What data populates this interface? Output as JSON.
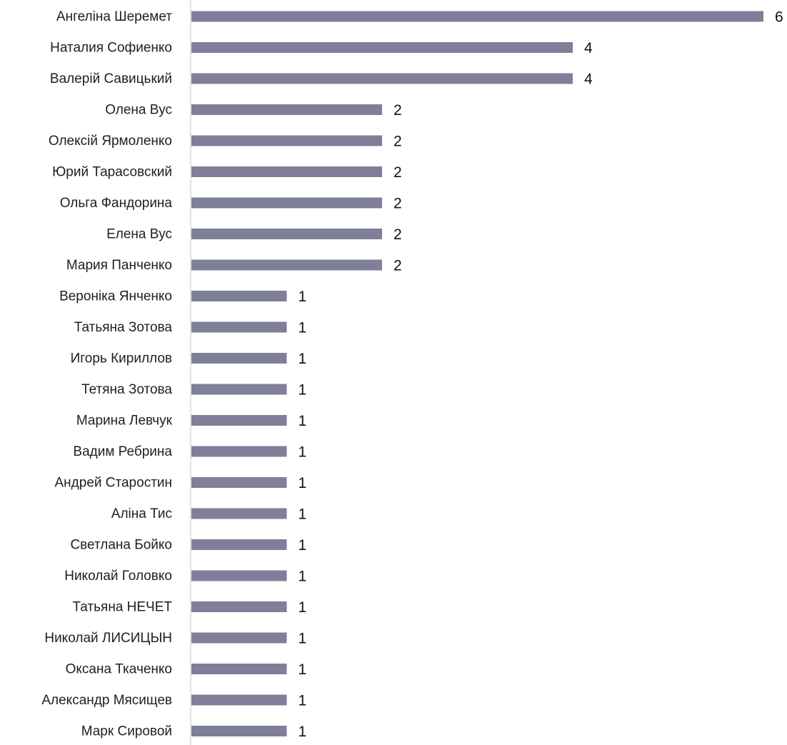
{
  "chart_data": {
    "type": "bar",
    "orientation": "horizontal",
    "title": "",
    "xlabel": "",
    "ylabel": "",
    "xlim": [
      0,
      6
    ],
    "grid": false,
    "legend": "none",
    "data_labels": true,
    "bar_color": "#7f7f99",
    "axis_color": "#d9d9d9",
    "categories": [
      "Ангеліна Шеремет",
      "Наталия Софиенко",
      "Валерій Савицький",
      "Олена Вус",
      "Олексій Ярмоленко",
      "Юрий Тарасовский",
      "Ольга Фандорина",
      "Елена Вус",
      "Мария Панченко",
      "Вероніка Янченко",
      "Татьяна Зотова",
      "Игорь Кириллов",
      "Тетяна Зотова",
      "Марина Левчук",
      "Вадим Ребрина",
      "Андрей Старостин",
      "Аліна Тис",
      "Светлана Бойко",
      "Николай Головко",
      "Татьяна НЕЧЕТ",
      "Николай ЛИСИЦЫН",
      "Оксана Ткаченко",
      "Александр Мясищев",
      "Марк Сировой"
    ],
    "values": [
      6,
      4,
      4,
      2,
      2,
      2,
      2,
      2,
      2,
      1,
      1,
      1,
      1,
      1,
      1,
      1,
      1,
      1,
      1,
      1,
      1,
      1,
      1,
      1
    ]
  }
}
